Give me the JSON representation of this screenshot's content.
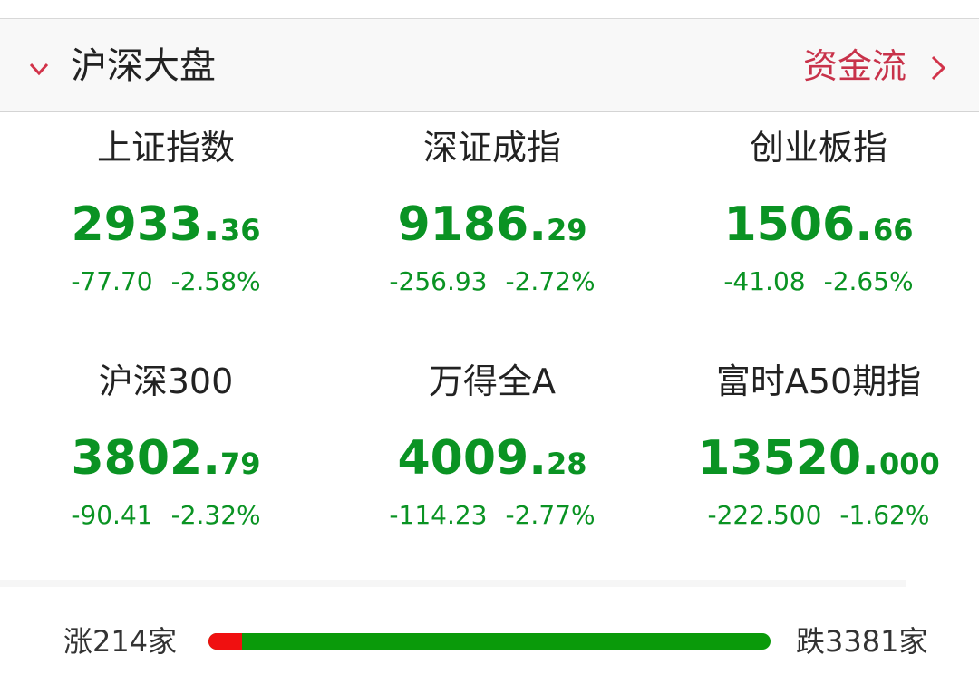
{
  "header": {
    "title": "沪深大盘",
    "link_label": "资金流",
    "accent_color": "#c8324a",
    "collapse_icon": "chevron-down-icon",
    "link_icon": "chevron-right-icon"
  },
  "indices": [
    {
      "name": "上证指数",
      "int": "2933.",
      "dec": "36",
      "change": "-77.70",
      "pct": "-2.58%"
    },
    {
      "name": "深证成指",
      "int": "9186.",
      "dec": "29",
      "change": "-256.93",
      "pct": "-2.72%"
    },
    {
      "name": "创业板指",
      "int": "1506.",
      "dec": "66",
      "change": "-41.08",
      "pct": "-2.65%"
    },
    {
      "name": "沪深300",
      "int": "3802.",
      "dec": "79",
      "change": "-90.41",
      "pct": "-2.32%"
    },
    {
      "name": "万得全A",
      "int": "4009.",
      "dec": "28",
      "change": "-114.23",
      "pct": "-2.77%"
    },
    {
      "name": "富时A50期指",
      "int": "13520.",
      "dec": "000",
      "change": "-222.500",
      "pct": "-1.62%"
    }
  ],
  "breadth": {
    "up_label": "涨214家",
    "down_label": "跌3381家",
    "up": 214,
    "down": 3381,
    "up_color": "#f01010",
    "down_color": "#0a9a0a"
  },
  "down_color": "#0a9323"
}
